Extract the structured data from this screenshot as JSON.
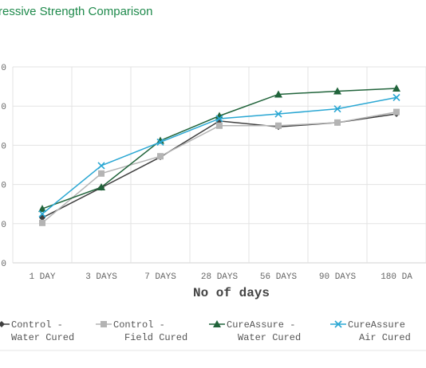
{
  "chart_data": {
    "type": "line",
    "title": "ressive Strength Comparison",
    "xlabel": "No of days",
    "categories": [
      "1 DAY",
      "3 DAYS",
      "7 DAYS",
      "28 DAYS",
      "56 DAYS",
      "90 DAYS",
      "180 DA"
    ],
    "y_tick_labels": [
      "0",
      "0",
      "0",
      "0",
      "0",
      "0"
    ],
    "ylim": [
      0,
      50
    ],
    "grid": true,
    "legend_position": "bottom",
    "series": [
      {
        "name_lines": [
          "Control -",
          "Water Cured"
        ],
        "color": "#404040",
        "marker": "diamond",
        "values": [
          11.5,
          19.2,
          27.0,
          36.2,
          34.7,
          35.8,
          38.0
        ]
      },
      {
        "name_lines": [
          "Control -",
          "Field Cured"
        ],
        "color": "#b4b4b4",
        "marker": "square",
        "values": [
          10.2,
          22.8,
          27.2,
          35.0,
          35.0,
          35.8,
          38.5
        ]
      },
      {
        "name_lines": [
          "CureAssure -",
          "Water Cured"
        ],
        "color": "#21643b",
        "marker": "triangle",
        "values": [
          13.8,
          19.3,
          31.2,
          37.5,
          43.0,
          43.8,
          44.5
        ]
      },
      {
        "name_lines": [
          "CureAssure",
          "Air Cured"
        ],
        "color": "#2aa7d3",
        "marker": "x",
        "values": [
          12.5,
          24.8,
          30.8,
          36.8,
          38.0,
          39.3,
          42.2
        ]
      }
    ]
  }
}
